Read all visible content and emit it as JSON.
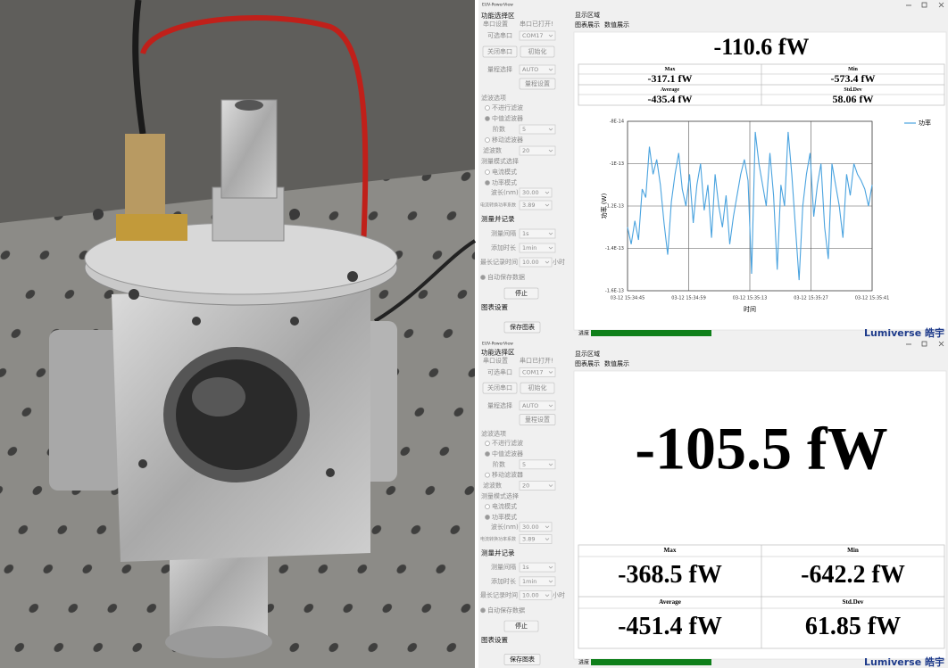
{
  "windows": [
    {
      "title": "EUV-PowerView",
      "panel": {
        "section_title": "功能选择区",
        "serial_group": "串口设置",
        "serial_status": "串口已打开!",
        "port_label": "可选串口",
        "port_value": "COM17",
        "close_port": "关闭串口",
        "init": "初始化",
        "range_label": "量程选择",
        "range_value": "AUTO",
        "range_set": "量程设置",
        "filter_group": "滤波选项",
        "no_filter": "不进行滤波",
        "median_filter": "中值滤波器",
        "order_label": "阶数",
        "order_value": "5",
        "moving_filter": "移动滤波器",
        "filter_count_label": "滤波数",
        "filter_count_value": "20",
        "mode_group": "测量模式选择",
        "current_mode": "电流模式",
        "power_mode": "功率模式",
        "wavelength_label": "波长(nm)",
        "wavelength_value": "30.00",
        "coef_label": "电流转换功率系数",
        "coef_value": "3.89",
        "record_group": "测量并记录",
        "interval_label": "测量间隔",
        "interval_value": "1s",
        "duration_label": "添加时长",
        "duration_value": "1min",
        "max_time_label": "最长记录时间",
        "max_time_value": "10.00",
        "hours": "小时",
        "autosave": "自动保存数据",
        "stop": "停止",
        "chart_settings": "图表设置",
        "save_chart": "保存图表"
      },
      "display": {
        "area_title": "显示区域",
        "tab_chart": "图表展示",
        "tab_value": "数值展示",
        "reading": "-110.6 fW",
        "max_label": "Max",
        "max": "-317.1 fW",
        "min_label": "Min",
        "min": "-573.4 fW",
        "avg_label": "Average",
        "avg": "-435.4 fW",
        "std_label": "Std.Dev",
        "std": "58.06 fW",
        "progress_label": "进度",
        "logo": "Lumiverse 皓宇"
      },
      "chart": {
        "type": "line",
        "y_label": "功率 (W)",
        "x_label": "时间",
        "ylim": [
          -1.6e-13,
          -8e-14
        ],
        "yticks": [
          {
            "value": -8e-14,
            "label": "-8E-14"
          },
          {
            "value": -1e-13,
            "label": "-1E-13"
          },
          {
            "value": -1.2e-13,
            "label": "-1.2E-13"
          },
          {
            "value": -1.4e-13,
            "label": "-1.4E-13"
          },
          {
            "value": -1.6e-13,
            "label": "-1.6E-13"
          }
        ],
        "xticks": [
          "03-12 15:34:45",
          "03-12 15:34:59",
          "03-12 15:35:13",
          "03-12 15:35:27",
          "03-12 15:35:41"
        ],
        "grid": true,
        "series": [
          {
            "name": "功率",
            "color": "#4aa3df",
            "values": [
              -1.3e-13,
              -1.38e-13,
              -1.27e-13,
              -1.36e-13,
              -1.12e-13,
              -1.16e-13,
              -9.2e-14,
              -1.05e-13,
              -9.8e-14,
              -1.1e-13,
              -1.28e-13,
              -1.43e-13,
              -1.18e-13,
              -1.05e-13,
              -9.5e-14,
              -1.12e-13,
              -1.2e-13,
              -1.05e-13,
              -1.28e-13,
              -1.1e-13,
              -1e-13,
              -1.22e-13,
              -1.1e-13,
              -1.35e-13,
              -1.05e-13,
              -1.2e-13,
              -1.3e-13,
              -1.15e-13,
              -1.38e-13,
              -1.25e-13,
              -1.15e-13,
              -1.05e-13,
              -9.8e-14,
              -1.08e-13,
              -1.52e-13,
              -8.5e-14,
              -1e-13,
              -1.1e-13,
              -1.2e-13,
              -9.5e-14,
              -1.15e-13,
              -1.5e-13,
              -1.1e-13,
              -1.2e-13,
              -8.5e-14,
              -1.05e-13,
              -1.3e-13,
              -1.55e-13,
              -1.2e-13,
              -1.05e-13,
              -9.5e-14,
              -1.25e-13,
              -1.1e-13,
              -1e-13,
              -1.3e-13,
              -1.45e-13,
              -1e-13,
              -1.1e-13,
              -1.2e-13,
              -1.35e-13,
              -1.05e-13,
              -1.15e-13,
              -1e-13,
              -1.05e-13,
              -1.08e-13,
              -1.12e-13,
              -1.2e-13,
              -1.1e-13
            ]
          }
        ]
      }
    },
    {
      "title": "EUV-PowerView",
      "panel": {
        "section_title": "功能选择区",
        "serial_group": "串口设置",
        "serial_status": "串口已打开!",
        "port_label": "可选串口",
        "port_value": "COM17",
        "close_port": "关闭串口",
        "init": "初始化",
        "range_label": "量程选择",
        "range_value": "AUTO",
        "range_set": "量程设置",
        "filter_group": "滤波选项",
        "no_filter": "不进行滤波",
        "median_filter": "中值滤波器",
        "order_label": "阶数",
        "order_value": "5",
        "moving_filter": "移动滤波器",
        "filter_count_label": "滤波数",
        "filter_count_value": "20",
        "mode_group": "测量模式选择",
        "current_mode": "电流模式",
        "power_mode": "功率模式",
        "wavelength_label": "波长(nm)",
        "wavelength_value": "30.00",
        "coef_label": "电流转换功率系数",
        "coef_value": "3.89",
        "record_group": "测量并记录",
        "interval_label": "测量间隔",
        "interval_value": "1s",
        "duration_label": "添加时长",
        "duration_value": "1min",
        "max_time_label": "最长记录时间",
        "max_time_value": "10.00",
        "hours": "小时",
        "autosave": "自动保存数据",
        "stop": "停止",
        "chart_settings": "图表设置",
        "save_chart": "保存图表"
      },
      "display": {
        "area_title": "显示区域",
        "tab_chart": "图表展示",
        "tab_value": "数值展示",
        "reading": "-105.5 fW",
        "max_label": "Max",
        "max": "-368.5 fW",
        "min_label": "Min",
        "min": "-642.2 fW",
        "avg_label": "Average",
        "avg": "-451.4 fW",
        "std_label": "Std.Dev",
        "std": "61.85 fW",
        "progress_label": "进度",
        "logo": "Lumiverse 皓宇"
      }
    }
  ]
}
